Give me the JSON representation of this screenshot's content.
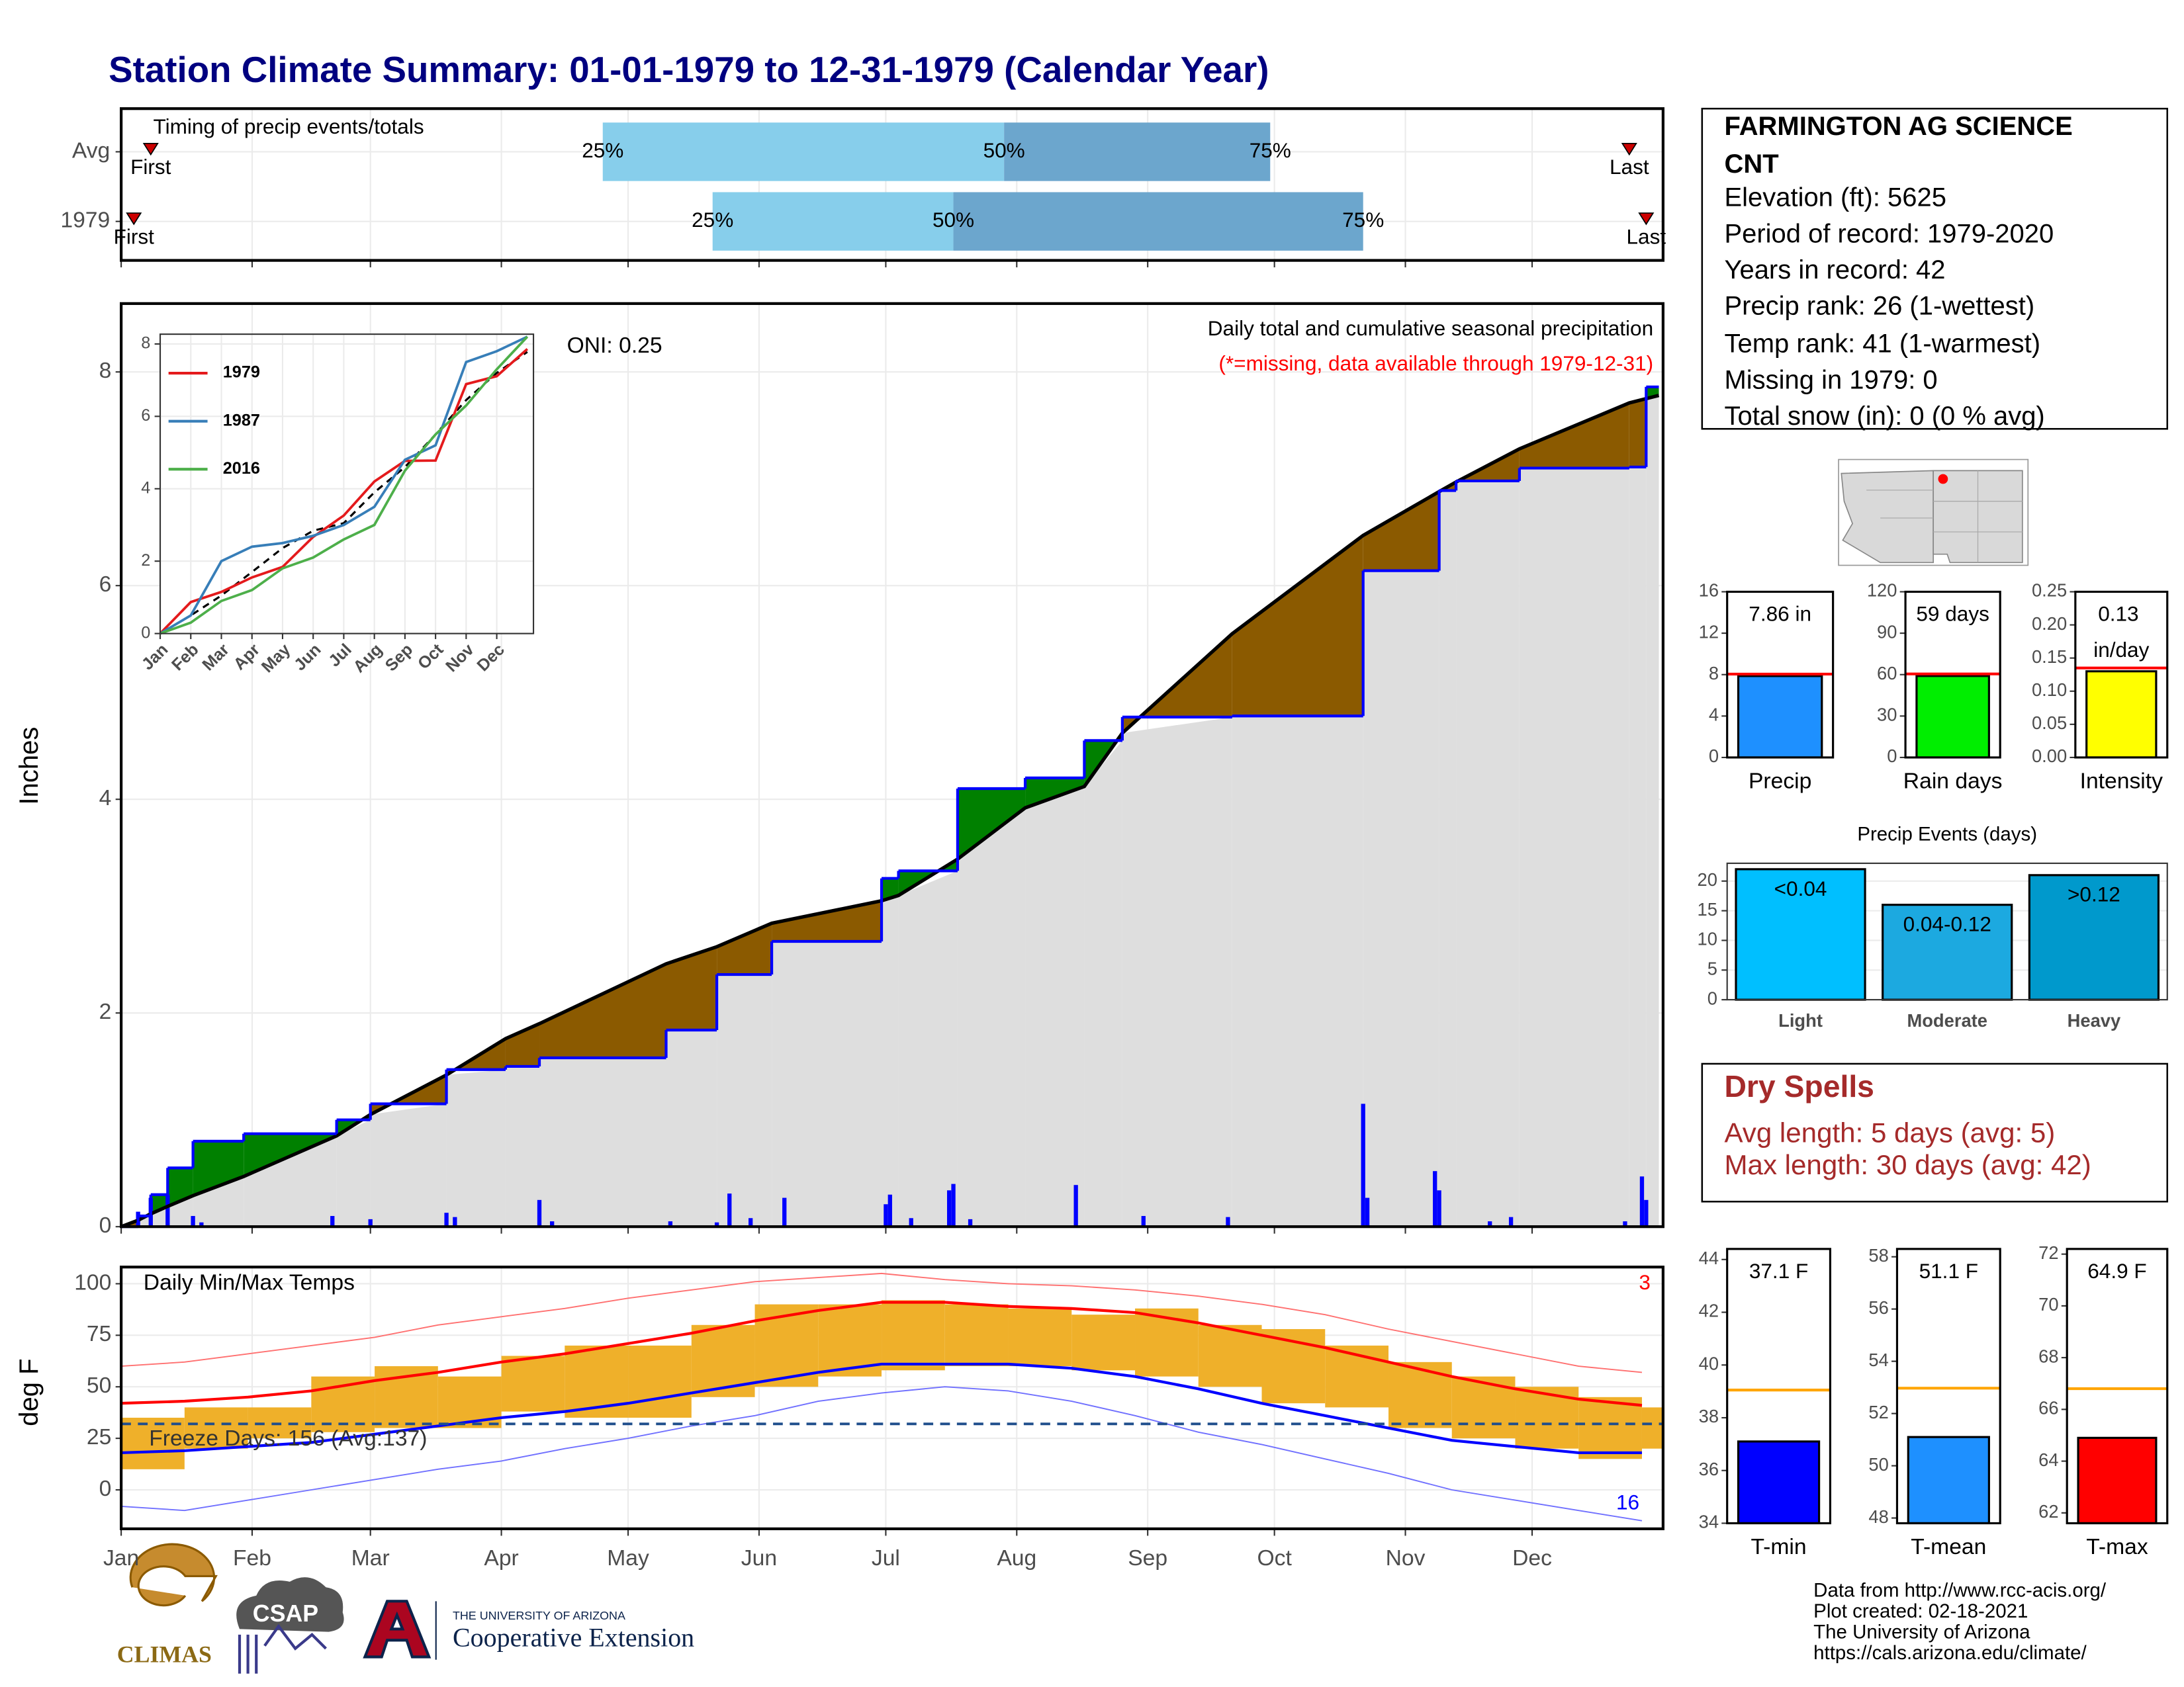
{
  "title": "Station Climate Summary: 01-01-1979 to 12-31-1979 (Calendar Year)",
  "station": {
    "lines": [
      "FARMINGTON AG SCIENCE",
      "CNT",
      "Elevation (ft): 5625",
      "Period of record: 1979-2020",
      "Years in record: 42",
      "Precip rank: 26 (1-wettest)",
      "Temp rank: 41 (1-warmest)",
      "Missing in 1979: 0",
      "Total snow (in): 0 (0 % avg)"
    ]
  },
  "dry_spells": {
    "title": "Dry Spells",
    "lines": [
      "Avg length: 5 days (avg: 5)",
      "Max length: 30 days (avg: 42)"
    ]
  },
  "credits": [
    "Data from http://www.rcc-acis.org/",
    "Plot created: 02-18-2021",
    "The University of Arizona",
    "https://cals.arizona.edu/climate/"
  ],
  "logos": [
    "CLIMAS",
    "CSAP",
    "THE UNIVERSITY OF ARIZONA",
    "Cooperative Extension"
  ],
  "chart_data": [
    {
      "type": "timing",
      "title": "Timing of precip events/totals",
      "categories": [
        "Avg",
        "1979"
      ],
      "first": [
        8,
        4
      ],
      "p25": [
        115,
        141
      ],
      "p50": [
        210,
        198
      ],
      "p75": [
        273,
        295
      ],
      "last": [
        358,
        362
      ],
      "first_label": "First",
      "last_label": "Last",
      "percent_labels": [
        "25%",
        "50%",
        "75%"
      ],
      "colors": [
        "#87ceeb",
        "#6ca6cd"
      ],
      "marker_color": "#cc0000",
      "xlim": [
        1,
        366
      ],
      "xticks": [
        1,
        32,
        60,
        91,
        121,
        152,
        182,
        213,
        244,
        274,
        305,
        335
      ]
    },
    {
      "type": "cumulative",
      "ylabel": "Inches",
      "annotation": "Daily total and cumulative seasonal precipitation",
      "note": "(*=missing, data available through 1979-12-31)",
      "oni": "ONI: 0.25",
      "x": [
        1,
        5,
        8,
        12,
        18,
        30,
        52,
        60,
        78,
        92,
        100,
        130,
        142,
        155,
        181,
        185,
        199,
        215,
        229,
        238,
        264,
        295,
        313,
        317,
        332,
        358,
        362,
        365
      ],
      "values": [
        0,
        0.1,
        0.3,
        0.55,
        0.8,
        0.87,
        1.0,
        1.15,
        1.47,
        1.5,
        1.58,
        1.84,
        2.36,
        2.67,
        3.26,
        3.33,
        4.1,
        4.2,
        4.55,
        4.77,
        4.78,
        6.14,
        6.89,
        6.98,
        7.1,
        7.11,
        7.86,
        7.86
      ],
      "average": [
        0,
        0.06,
        0.12,
        0.19,
        0.29,
        0.47,
        0.85,
        1.05,
        1.42,
        1.76,
        1.9,
        2.46,
        2.62,
        2.84,
        3.05,
        3.1,
        3.44,
        3.92,
        4.12,
        4.62,
        5.55,
        6.47,
        6.88,
        6.97,
        7.28,
        7.71,
        7.75,
        7.78
      ],
      "daily_x": [
        5,
        8,
        12,
        18,
        20,
        51,
        60,
        78,
        80,
        100,
        103,
        131,
        142,
        145,
        150,
        158,
        182,
        183,
        188,
        197,
        198,
        202,
        227,
        243,
        263,
        295,
        296,
        312,
        313,
        325,
        330,
        357,
        361,
        362
      ],
      "daily_values": [
        0.14,
        0.27,
        0.3,
        0.1,
        0.04,
        0.1,
        0.07,
        0.13,
        0.09,
        0.25,
        0.05,
        0.05,
        0.04,
        0.31,
        0.08,
        0.27,
        0.21,
        0.3,
        0.08,
        0.34,
        0.4,
        0.07,
        0.39,
        0.1,
        0.09,
        1.15,
        0.27,
        0.52,
        0.34,
        0.05,
        0.09,
        0.05,
        0.47,
        0.25
      ],
      "colors": {
        "line": "#0000ff",
        "average": "#000000",
        "above": "#008000",
        "below": "#8b5a00",
        "area": "#dedede",
        "daily": "#0000ff"
      },
      "xlim": [
        1,
        366
      ],
      "xticks": [
        1,
        32,
        60,
        91,
        121,
        152,
        182,
        213,
        244,
        274,
        305,
        335
      ],
      "ylim": [
        0,
        8.64
      ],
      "yticks": [
        0,
        2,
        4,
        6,
        8
      ],
      "grid": true
    },
    {
      "type": "line",
      "x": [
        1,
        2,
        3,
        4,
        5,
        6,
        7,
        8,
        9,
        10,
        11,
        12,
        13
      ],
      "series": [
        {
          "name": "1979",
          "color": "#e41a1c",
          "values": [
            0,
            0.87,
            1.15,
            1.55,
            1.84,
            2.67,
            3.26,
            4.2,
            4.77,
            4.78,
            6.89,
            7.11,
            7.86
          ]
        },
        {
          "name": "1987",
          "color": "#377eb8",
          "values": [
            0,
            0.5,
            2.0,
            2.4,
            2.5,
            2.7,
            3.0,
            3.5,
            4.8,
            5.2,
            7.5,
            7.8,
            8.2
          ]
        },
        {
          "name": "2016",
          "color": "#4daf4a",
          "values": [
            0,
            0.3,
            0.9,
            1.2,
            1.8,
            2.1,
            2.6,
            3.0,
            4.5,
            5.5,
            6.3,
            7.3,
            8.2
          ]
        }
      ],
      "average": [
        0,
        0.5,
        1.05,
        1.7,
        2.36,
        2.84,
        3.05,
        3.9,
        4.6,
        5.5,
        6.45,
        7.2,
        7.78
      ],
      "xlim": [
        1,
        13.2
      ],
      "xticks": [
        {
          "value": 1,
          "label": "Jan"
        },
        {
          "value": 2,
          "label": "Feb"
        },
        {
          "value": 3,
          "label": "Mar"
        },
        {
          "value": 4,
          "label": "Apr"
        },
        {
          "value": 5,
          "label": "May"
        },
        {
          "value": 6,
          "label": "Jun"
        },
        {
          "value": 7,
          "label": "Jul"
        },
        {
          "value": 8,
          "label": "Aug"
        },
        {
          "value": 9,
          "label": "Sep"
        },
        {
          "value": 10,
          "label": "Oct"
        },
        {
          "value": 11,
          "label": "Nov"
        },
        {
          "value": 12,
          "label": "Dec"
        }
      ],
      "ylim": [
        0,
        8.27
      ],
      "yticks": [
        0,
        2,
        4,
        6,
        8
      ],
      "grid": true,
      "legend": "top-left"
    },
    {
      "type": "temperature",
      "title": "Daily Min/Max Temps",
      "ylabel": "deg F",
      "freeze": 32,
      "freeze_label": "Freeze Days: 156 (Avg:137)",
      "record_highs": 3,
      "record_lows": 16,
      "x": [
        1,
        16,
        31,
        46,
        61,
        76,
        91,
        106,
        121,
        136,
        151,
        166,
        181,
        196,
        211,
        226,
        241,
        256,
        271,
        286,
        301,
        316,
        331,
        346,
        361
      ],
      "max": [
        35,
        40,
        40,
        55,
        60,
        55,
        65,
        70,
        70,
        80,
        90,
        90,
        92,
        90,
        88,
        85,
        88,
        80,
        78,
        70,
        62,
        55,
        50,
        45,
        40
      ],
      "min": [
        10,
        20,
        25,
        28,
        30,
        30,
        38,
        35,
        35,
        45,
        50,
        55,
        58,
        60,
        60,
        58,
        55,
        50,
        42,
        40,
        30,
        25,
        20,
        15,
        20
      ],
      "avg_max": [
        42,
        43,
        45,
        48,
        53,
        57,
        62,
        66,
        71,
        76,
        82,
        87,
        91,
        91,
        89,
        88,
        86,
        81,
        75,
        69,
        62,
        55,
        49,
        44,
        41
      ],
      "avg_min": [
        18,
        19,
        21,
        23,
        27,
        31,
        35,
        38,
        42,
        47,
        52,
        57,
        61,
        61,
        61,
        59,
        55,
        49,
        42,
        36,
        30,
        24,
        21,
        18,
        18
      ],
      "record_high": [
        60,
        62,
        66,
        70,
        74,
        80,
        84,
        88,
        93,
        97,
        101,
        103,
        105,
        102,
        100,
        99,
        97,
        94,
        90,
        85,
        78,
        72,
        66,
        60,
        57
      ],
      "record_low": [
        -8,
        -10,
        -5,
        0,
        5,
        10,
        14,
        20,
        25,
        31,
        36,
        43,
        47,
        50,
        48,
        43,
        36,
        28,
        22,
        15,
        8,
        0,
        -5,
        -10,
        -15
      ],
      "colors": {
        "bars": "#efb02a",
        "avg_max": "#ff0000",
        "avg_min": "#0000ff",
        "record_high": "#ff7070",
        "record_low": "#7070ff",
        "freeze": "#1f4e8c"
      },
      "xlim": [
        1,
        366
      ],
      "xticks": [
        {
          "value": 1,
          "label": "Jan"
        },
        {
          "value": 32,
          "label": "Feb"
        },
        {
          "value": 60,
          "label": "Mar"
        },
        {
          "value": 91,
          "label": "Apr"
        },
        {
          "value": 121,
          "label": "May"
        },
        {
          "value": 152,
          "label": "Jun"
        },
        {
          "value": 182,
          "label": "Jul"
        },
        {
          "value": 213,
          "label": "Aug"
        },
        {
          "value": 244,
          "label": "Sep"
        },
        {
          "value": 274,
          "label": "Oct"
        },
        {
          "value": 305,
          "label": "Nov"
        },
        {
          "value": 335,
          "label": "Dec"
        }
      ],
      "ylim": [
        -18.9,
        108.1
      ],
      "yticks": [
        0,
        25,
        50,
        75,
        100
      ],
      "grid": true
    },
    {
      "type": "single_bar",
      "categories": [
        "Precip"
      ],
      "values": [
        7.86
      ],
      "value_labels": [
        "7.86 in"
      ],
      "average": 8.05,
      "color": "#1e90ff",
      "average_color": "#ff0000",
      "ylim": [
        0,
        16
      ],
      "yticks": [
        0,
        4,
        8,
        12,
        16
      ]
    },
    {
      "type": "single_bar",
      "categories": [
        "Rain days"
      ],
      "values": [
        59
      ],
      "value_labels": [
        "59 days"
      ],
      "average": 60.5,
      "color": "#00ee00",
      "average_color": "#ff0000",
      "ylim": [
        0,
        120
      ],
      "yticks": [
        0,
        30,
        60,
        90,
        120
      ]
    },
    {
      "type": "single_bar",
      "categories": [
        "Intensity"
      ],
      "values": [
        0.13
      ],
      "value_labels": [
        "0.13 in/day"
      ],
      "average": 0.135,
      "color": "#ffff00",
      "average_color": "#ff0000",
      "ylim": [
        0,
        0.25
      ],
      "yticks": [
        {
          "value": 0,
          "label": "0.00"
        },
        {
          "value": 0.05,
          "label": "0.05"
        },
        {
          "value": 0.1,
          "label": "0.10"
        },
        {
          "value": 0.15,
          "label": "0.15"
        },
        {
          "value": 0.2,
          "label": "0.20"
        },
        {
          "value": 0.25,
          "label": "0.25"
        }
      ]
    },
    {
      "type": "bar",
      "title": "Precip Events (days)",
      "categories": [
        "Light",
        "Moderate",
        "Heavy"
      ],
      "values": [
        22,
        16,
        21
      ],
      "ranges": [
        "<0.04",
        "0.04-0.12",
        ">0.12"
      ],
      "colors": [
        "#00bfff",
        "#1ca9e0",
        "#0099cc"
      ],
      "ylim": [
        0,
        23
      ],
      "yticks": [
        0,
        5,
        10,
        15,
        20
      ],
      "grid": true
    },
    {
      "type": "single_bar",
      "categories": [
        "T-min"
      ],
      "values": [
        37.1
      ],
      "value_labels": [
        "37.1 F"
      ],
      "average": 39.05,
      "color": "#0000ff",
      "average_color": "#ffa500",
      "ylim": [
        34,
        44.4
      ],
      "yticks": [
        34,
        36,
        38,
        40,
        42,
        44
      ]
    },
    {
      "type": "single_bar",
      "categories": [
        "T-mean"
      ],
      "values": [
        51.1
      ],
      "value_labels": [
        "51.1 F"
      ],
      "average": 52.97,
      "color": "#1e90ff",
      "average_color": "#ffa500",
      "ylim": [
        47.8,
        58.3
      ],
      "yticks": [
        48,
        50,
        52,
        54,
        56,
        58
      ]
    },
    {
      "type": "single_bar",
      "categories": [
        "T-max"
      ],
      "values": [
        64.9
      ],
      "value_labels": [
        "64.9 F"
      ],
      "average": 66.8,
      "color": "#ff0000",
      "average_color": "#ffa500",
      "ylim": [
        61.6,
        72.2
      ],
      "yticks": [
        62,
        64,
        66,
        68,
        70,
        72
      ]
    }
  ]
}
